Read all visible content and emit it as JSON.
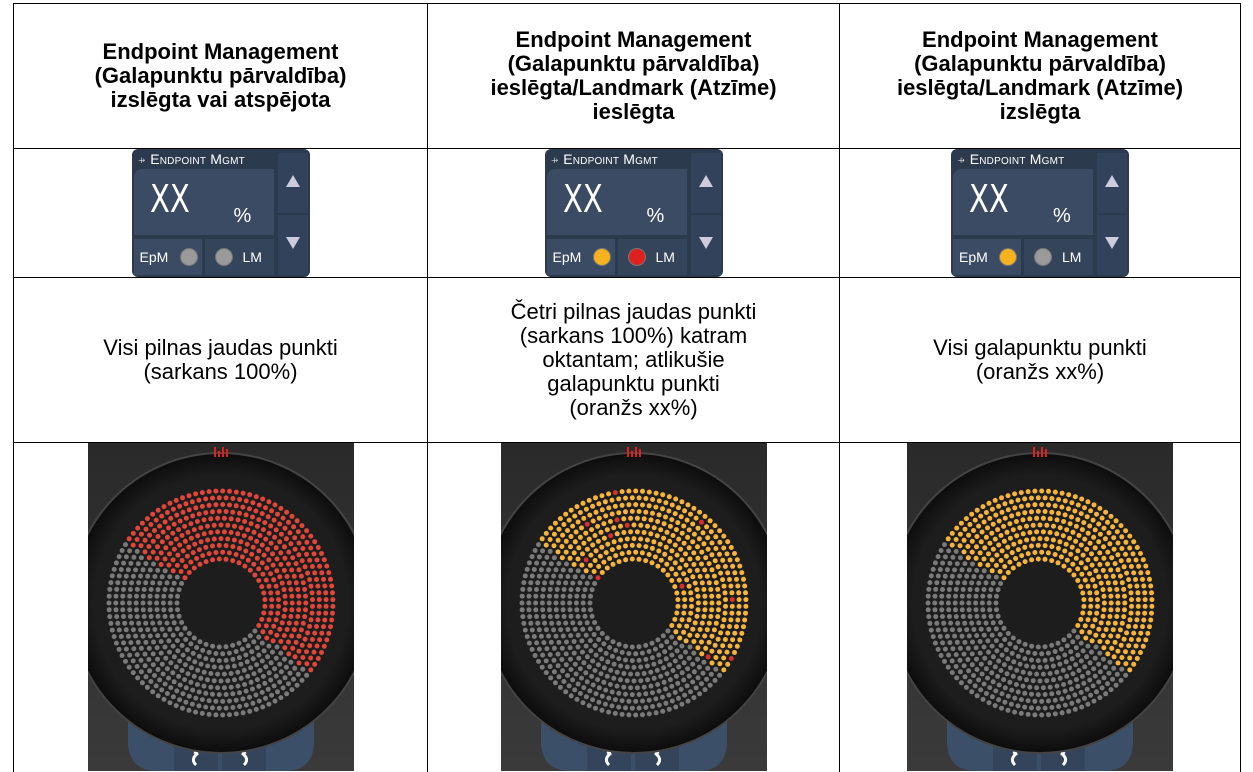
{
  "table": {
    "headers": [
      "Endpoint Management\n(Galapunktu pārvaldība)\nizslēgta vai atspējota",
      "Endpoint Management\n(Galapunktu pārvaldība)\nieslēgta/Landmark (Atzīme)\nieslēgta",
      "Endpoint Management\n(Galapunktu pārvaldība)\nieslēgta/Landmark (Atzīme)\nizslēgta"
    ],
    "widgets": [
      {
        "title": "Endpoint Mgmt",
        "value": "XX",
        "unit": "%",
        "epm": "EpM",
        "lm": "LM"
      },
      {
        "title": "Endpoint Mgmt",
        "value": "XX",
        "unit": "%",
        "epm": "EpM",
        "lm": "LM"
      },
      {
        "title": "Endpoint Mgmt",
        "value": "XX",
        "unit": "%",
        "epm": "EpM",
        "lm": "LM"
      }
    ],
    "descriptions": [
      "Visi pilnas jaudas punkti\n(sarkans 100%)",
      "Četri pilnas jaudas punkti\n(sarkans 100%) katram\noktantam; atlikušie\ngalapunktu punkti\n(oranžs xx%)",
      "Visi galapunktu punkti\n(oranžs xx%)"
    ]
  }
}
